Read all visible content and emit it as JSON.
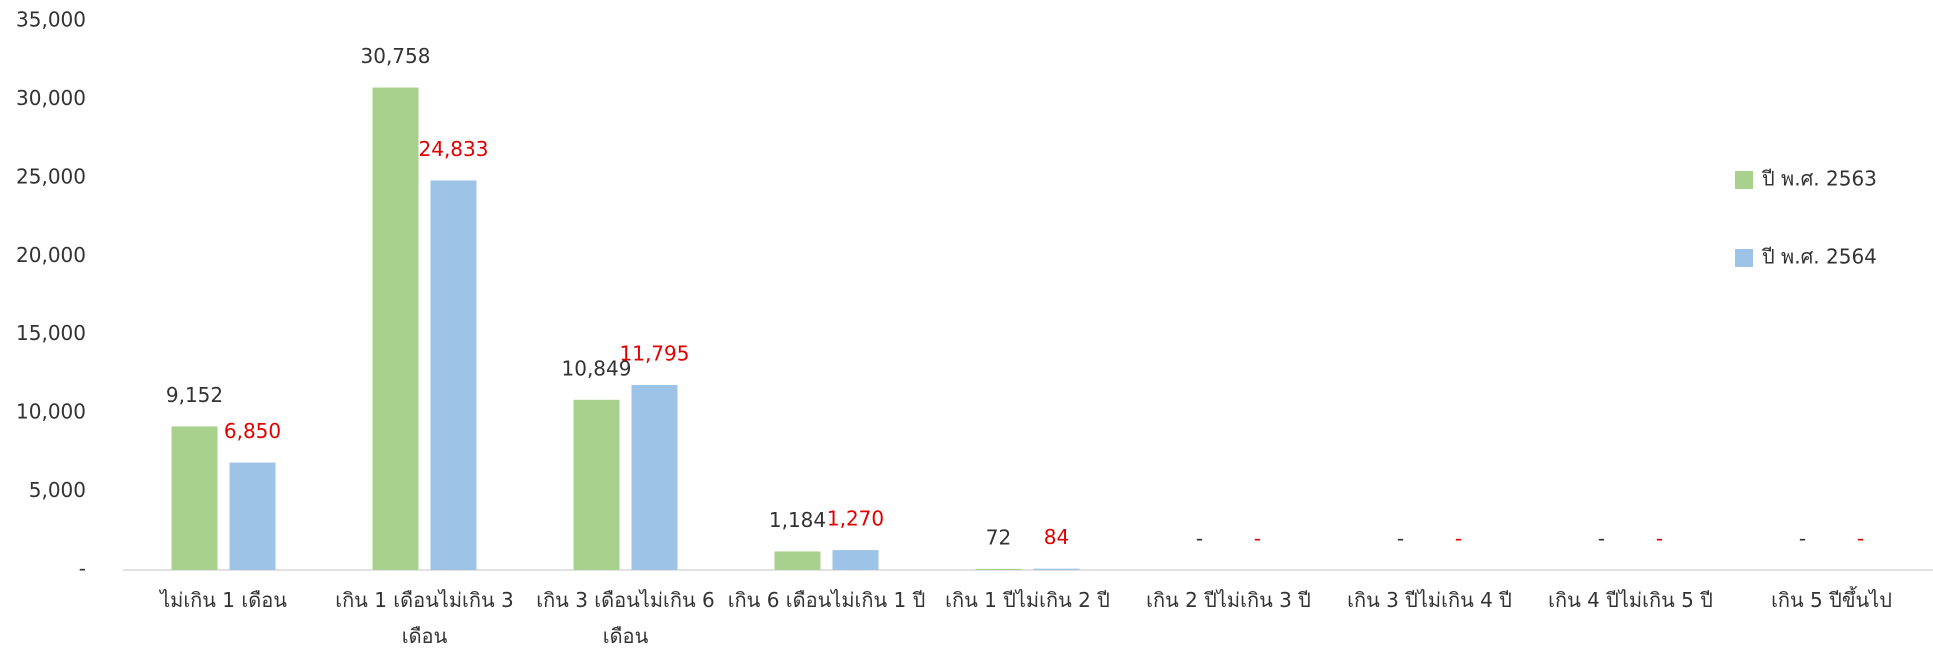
{
  "chart_data": {
    "type": "bar",
    "categories": [
      "ไม่เกิน 1 เดือน",
      "เกิน 1 เดือนไม่เกิน 3 เดือน",
      "เกิน 3 เดือนไม่เกิน 6 เดือน",
      "เกิน 6 เดือนไม่เกิน 1 ปี",
      "เกิน 1 ปีไม่เกิน 2 ปี",
      "เกิน 2 ปีไม่เกิน 3 ปี",
      "เกิน 3 ปีไม่เกิน 4 ปี",
      "เกิน 4 ปีไม่เกิน 5 ปี",
      "เกิน 5 ปีขึ้นไป"
    ],
    "series": [
      {
        "name": "ปี พ.ศ. 2563",
        "color": "#a9d18e",
        "label_color": "#333333",
        "values": [
          9152,
          30758,
          10849,
          1184,
          72,
          0,
          0,
          0,
          0
        ],
        "value_labels": [
          "9,152",
          "30,758",
          "10,849",
          "1,184",
          "72",
          "-",
          "-",
          "-",
          "-"
        ]
      },
      {
        "name": "ปี พ.ศ. 2564",
        "color": "#9dc3e6",
        "label_color": "#e00000",
        "values": [
          6850,
          24833,
          11795,
          1270,
          84,
          0,
          0,
          0,
          0
        ],
        "value_labels": [
          "6,850",
          "24,833",
          "11,795",
          "1,270",
          "84",
          "-",
          "-",
          "-",
          "-"
        ]
      }
    ],
    "ylim": [
      0,
      35000
    ],
    "yticks": [
      {
        "value": 0,
        "label": "-"
      },
      {
        "value": 5000,
        "label": "5,000"
      },
      {
        "value": 10000,
        "label": "10,000"
      },
      {
        "value": 15000,
        "label": "15,000"
      },
      {
        "value": 20000,
        "label": "20,000"
      },
      {
        "value": 25000,
        "label": "25,000"
      },
      {
        "value": 30000,
        "label": "30,000"
      },
      {
        "value": 35000,
        "label": "35,000"
      }
    ],
    "legend": "right",
    "grid": false
  }
}
